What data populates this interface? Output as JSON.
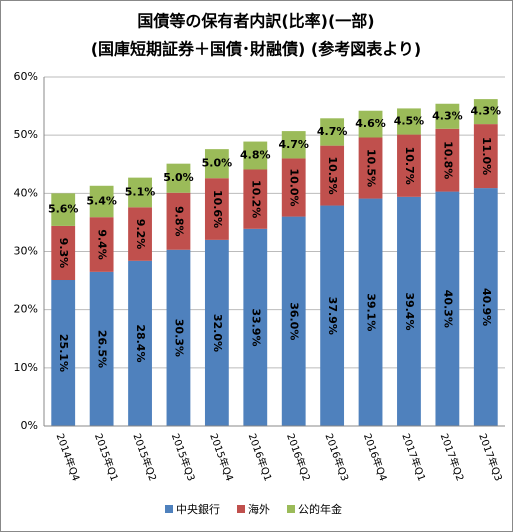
{
  "chart_data": {
    "type": "stacked_bar",
    "title": "国債等の保有者内訳(比率)(一部)",
    "subtitle": "(国庫短期証券＋国債･財融債) (参考図表より)",
    "categories": [
      "2014年Q4",
      "2015年Q1",
      "2015年Q2",
      "2015年Q3",
      "2015年Q4",
      "2016年Q1",
      "2016年Q2",
      "2016年Q3",
      "2016年Q4",
      "2017年Q1",
      "2017年Q2",
      "2017年Q3"
    ],
    "series": [
      {
        "name": "中央銀行",
        "color": "#4f81bd",
        "values": [
          25.1,
          26.5,
          28.4,
          30.3,
          32.0,
          33.9,
          36.0,
          37.9,
          39.1,
          39.4,
          40.3,
          40.9
        ],
        "value_labels": [
          "25.1%",
          "26.5%",
          "28.4%",
          "30.3%",
          "32.0%",
          "33.9%",
          "36.0%",
          "37.9%",
          "39.1%",
          "39.4%",
          "40.3%",
          "40.9%"
        ]
      },
      {
        "name": "海外",
        "color": "#c0504d",
        "values": [
          9.3,
          9.4,
          9.2,
          9.8,
          10.6,
          10.2,
          10.0,
          10.3,
          10.5,
          10.7,
          10.8,
          11.0
        ],
        "value_labels": [
          "9.3%",
          "9.4%",
          "9.2%",
          "9.8%",
          "10.6%",
          "10.2%",
          "10.0%",
          "10.3%",
          "10.5%",
          "10.7%",
          "10.8%",
          "11.0%"
        ]
      },
      {
        "name": "公的年金",
        "color": "#9bbb59",
        "values": [
          5.6,
          5.4,
          5.1,
          5.0,
          5.0,
          4.8,
          4.7,
          4.7,
          4.6,
          4.5,
          4.3,
          4.3
        ],
        "value_labels": [
          "5.6%",
          "5.4%",
          "5.1%",
          "5.0%",
          "5.0%",
          "4.8%",
          "4.7%",
          "4.7%",
          "4.6%",
          "4.5%",
          "4.3%",
          "4.3%"
        ]
      }
    ],
    "ylim": [
      0,
      60
    ],
    "yticks": [
      {
        "value": 0,
        "label": "0%"
      },
      {
        "value": 10,
        "label": "10%"
      },
      {
        "value": 20,
        "label": "20%"
      },
      {
        "value": 30,
        "label": "30%"
      },
      {
        "value": 40,
        "label": "40%"
      },
      {
        "value": 50,
        "label": "50%"
      },
      {
        "value": 60,
        "label": "60%"
      }
    ],
    "grid": true,
    "legend": "bottom"
  }
}
